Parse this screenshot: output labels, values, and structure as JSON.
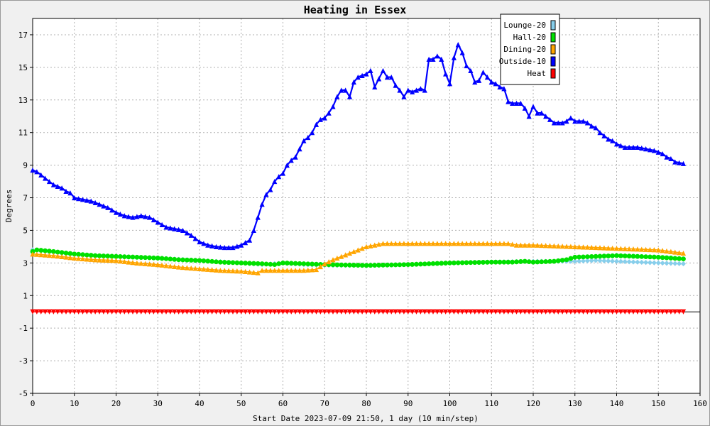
{
  "chart_data": {
    "type": "line",
    "title": "Heating in Essex",
    "xlabel": "Start Date 2023-07-09 21:50, 1 day (10 min/step)",
    "ylabel": "Degrees",
    "xlim": [
      0,
      160
    ],
    "ylim": [
      -5,
      18
    ],
    "xticks": [
      0,
      10,
      20,
      30,
      40,
      50,
      60,
      70,
      80,
      90,
      100,
      110,
      120,
      130,
      140,
      150,
      160
    ],
    "yticks": [
      -5,
      -3,
      -1,
      1,
      3,
      5,
      7,
      9,
      11,
      13,
      15,
      17
    ],
    "grid": true,
    "legend_position": "top-right",
    "series": [
      {
        "name": "Lounge-20",
        "color": "#87ceeb",
        "marker": "diamond",
        "points": [
          [
            0,
            3.8
          ],
          [
            10,
            3.5
          ],
          [
            20,
            3.4
          ],
          [
            30,
            3.3
          ],
          [
            40,
            3.15
          ],
          [
            50,
            3.0
          ],
          [
            55,
            2.9
          ],
          [
            60,
            3.0
          ],
          [
            65,
            2.9
          ],
          [
            70,
            2.85
          ],
          [
            80,
            2.85
          ],
          [
            90,
            2.9
          ],
          [
            100,
            3.0
          ],
          [
            110,
            3.05
          ],
          [
            120,
            3.1
          ],
          [
            126,
            3.1
          ],
          [
            130,
            3.1
          ],
          [
            135,
            3.15
          ],
          [
            140,
            3.1
          ],
          [
            145,
            3.05
          ],
          [
            150,
            3.0
          ],
          [
            156,
            2.95
          ]
        ]
      },
      {
        "name": "Hall-20",
        "color": "#00e000",
        "marker": "circle",
        "points": [
          [
            0,
            3.7
          ],
          [
            1,
            3.8
          ],
          [
            5,
            3.7
          ],
          [
            10,
            3.55
          ],
          [
            15,
            3.45
          ],
          [
            20,
            3.4
          ],
          [
            25,
            3.35
          ],
          [
            30,
            3.3
          ],
          [
            35,
            3.2
          ],
          [
            40,
            3.15
          ],
          [
            45,
            3.05
          ],
          [
            50,
            3.0
          ],
          [
            55,
            2.95
          ],
          [
            58,
            2.9
          ],
          [
            60,
            3.0
          ],
          [
            65,
            2.95
          ],
          [
            70,
            2.9
          ],
          [
            80,
            2.85
          ],
          [
            90,
            2.9
          ],
          [
            100,
            3.0
          ],
          [
            110,
            3.05
          ],
          [
            115,
            3.05
          ],
          [
            118,
            3.1
          ],
          [
            120,
            3.05
          ],
          [
            125,
            3.1
          ],
          [
            128,
            3.2
          ],
          [
            130,
            3.35
          ],
          [
            135,
            3.4
          ],
          [
            140,
            3.45
          ],
          [
            145,
            3.4
          ],
          [
            150,
            3.35
          ],
          [
            156,
            3.25
          ]
        ]
      },
      {
        "name": "Dining-20",
        "color": "#ffa500",
        "marker": "triangle-up",
        "points": [
          [
            0,
            3.55
          ],
          [
            5,
            3.45
          ],
          [
            10,
            3.3
          ],
          [
            15,
            3.2
          ],
          [
            20,
            3.15
          ],
          [
            25,
            3.0
          ],
          [
            30,
            2.9
          ],
          [
            35,
            2.75
          ],
          [
            40,
            2.65
          ],
          [
            45,
            2.55
          ],
          [
            50,
            2.5
          ],
          [
            54,
            2.4
          ],
          [
            55,
            2.55
          ],
          [
            60,
            2.55
          ],
          [
            65,
            2.55
          ],
          [
            68,
            2.6
          ],
          [
            70,
            2.95
          ],
          [
            72,
            3.2
          ],
          [
            75,
            3.5
          ],
          [
            78,
            3.8
          ],
          [
            80,
            4.0
          ],
          [
            84,
            4.2
          ],
          [
            90,
            4.2
          ],
          [
            100,
            4.2
          ],
          [
            110,
            4.2
          ],
          [
            114,
            4.2
          ],
          [
            116,
            4.1
          ],
          [
            120,
            4.1
          ],
          [
            125,
            4.05
          ],
          [
            130,
            4.0
          ],
          [
            135,
            3.95
          ],
          [
            140,
            3.9
          ],
          [
            145,
            3.85
          ],
          [
            150,
            3.8
          ],
          [
            156,
            3.6
          ]
        ]
      },
      {
        "name": "Outside-10",
        "color": "#0000ff",
        "marker": "triangle-up",
        "points": [
          [
            0,
            8.7
          ],
          [
            1,
            8.6
          ],
          [
            2,
            8.4
          ],
          [
            3,
            8.2
          ],
          [
            4,
            8.0
          ],
          [
            5,
            7.8
          ],
          [
            7,
            7.6
          ],
          [
            8,
            7.4
          ],
          [
            9,
            7.3
          ],
          [
            10,
            7.0
          ],
          [
            12,
            6.9
          ],
          [
            14,
            6.8
          ],
          [
            16,
            6.6
          ],
          [
            18,
            6.4
          ],
          [
            20,
            6.1
          ],
          [
            22,
            5.9
          ],
          [
            24,
            5.8
          ],
          [
            26,
            5.9
          ],
          [
            28,
            5.8
          ],
          [
            30,
            5.5
          ],
          [
            32,
            5.2
          ],
          [
            34,
            5.1
          ],
          [
            36,
            5.0
          ],
          [
            38,
            4.7
          ],
          [
            40,
            4.3
          ],
          [
            42,
            4.1
          ],
          [
            44,
            4.0
          ],
          [
            46,
            3.95
          ],
          [
            48,
            3.95
          ],
          [
            50,
            4.1
          ],
          [
            52,
            4.4
          ],
          [
            53,
            5.0
          ],
          [
            54,
            5.8
          ],
          [
            55,
            6.6
          ],
          [
            56,
            7.2
          ],
          [
            57,
            7.5
          ],
          [
            58,
            8.0
          ],
          [
            59,
            8.3
          ],
          [
            60,
            8.5
          ],
          [
            61,
            9.0
          ],
          [
            62,
            9.3
          ],
          [
            63,
            9.5
          ],
          [
            64,
            10.0
          ],
          [
            65,
            10.5
          ],
          [
            66,
            10.7
          ],
          [
            67,
            11.0
          ],
          [
            68,
            11.5
          ],
          [
            69,
            11.8
          ],
          [
            70,
            11.9
          ],
          [
            71,
            12.2
          ],
          [
            72,
            12.6
          ],
          [
            73,
            13.2
          ],
          [
            74,
            13.6
          ],
          [
            75,
            13.6
          ],
          [
            76,
            13.2
          ],
          [
            77,
            14.1
          ],
          [
            78,
            14.4
          ],
          [
            79,
            14.5
          ],
          [
            80,
            14.6
          ],
          [
            81,
            14.8
          ],
          [
            82,
            13.8
          ],
          [
            83,
            14.3
          ],
          [
            84,
            14.8
          ],
          [
            85,
            14.4
          ],
          [
            86,
            14.4
          ],
          [
            87,
            13.9
          ],
          [
            88,
            13.6
          ],
          [
            89,
            13.2
          ],
          [
            90,
            13.6
          ],
          [
            91,
            13.5
          ],
          [
            92,
            13.6
          ],
          [
            93,
            13.7
          ],
          [
            94,
            13.6
          ],
          [
            95,
            15.5
          ],
          [
            96,
            15.5
          ],
          [
            97,
            15.7
          ],
          [
            98,
            15.5
          ],
          [
            99,
            14.6
          ],
          [
            100,
            14.0
          ],
          [
            101,
            15.6
          ],
          [
            102,
            16.4
          ],
          [
            103,
            15.9
          ],
          [
            104,
            15.1
          ],
          [
            105,
            14.8
          ],
          [
            106,
            14.1
          ],
          [
            107,
            14.2
          ],
          [
            108,
            14.7
          ],
          [
            109,
            14.4
          ],
          [
            110,
            14.1
          ],
          [
            111,
            14.0
          ],
          [
            112,
            13.8
          ],
          [
            113,
            13.7
          ],
          [
            114,
            12.9
          ],
          [
            115,
            12.8
          ],
          [
            116,
            12.8
          ],
          [
            117,
            12.8
          ],
          [
            118,
            12.5
          ],
          [
            119,
            12.0
          ],
          [
            120,
            12.6
          ],
          [
            121,
            12.2
          ],
          [
            122,
            12.2
          ],
          [
            123,
            12.0
          ],
          [
            124,
            11.8
          ],
          [
            125,
            11.6
          ],
          [
            126,
            11.6
          ],
          [
            127,
            11.6
          ],
          [
            128,
            11.7
          ],
          [
            129,
            11.9
          ],
          [
            130,
            11.7
          ],
          [
            131,
            11.7
          ],
          [
            132,
            11.7
          ],
          [
            133,
            11.6
          ],
          [
            134,
            11.4
          ],
          [
            135,
            11.3
          ],
          [
            136,
            11.0
          ],
          [
            137,
            10.8
          ],
          [
            138,
            10.6
          ],
          [
            139,
            10.5
          ],
          [
            140,
            10.3
          ],
          [
            141,
            10.2
          ],
          [
            142,
            10.1
          ],
          [
            143,
            10.1
          ],
          [
            144,
            10.1
          ],
          [
            145,
            10.1
          ],
          [
            146,
            10.05
          ],
          [
            147,
            10.0
          ],
          [
            148,
            9.95
          ],
          [
            149,
            9.9
          ],
          [
            150,
            9.8
          ],
          [
            151,
            9.7
          ],
          [
            152,
            9.5
          ],
          [
            153,
            9.4
          ],
          [
            154,
            9.2
          ],
          [
            155,
            9.15
          ],
          [
            156,
            9.1
          ]
        ]
      },
      {
        "name": "Heat",
        "color": "#ff0000",
        "marker": "triangle-down",
        "points": [
          [
            0,
            0
          ],
          [
            156,
            0
          ]
        ]
      }
    ]
  }
}
